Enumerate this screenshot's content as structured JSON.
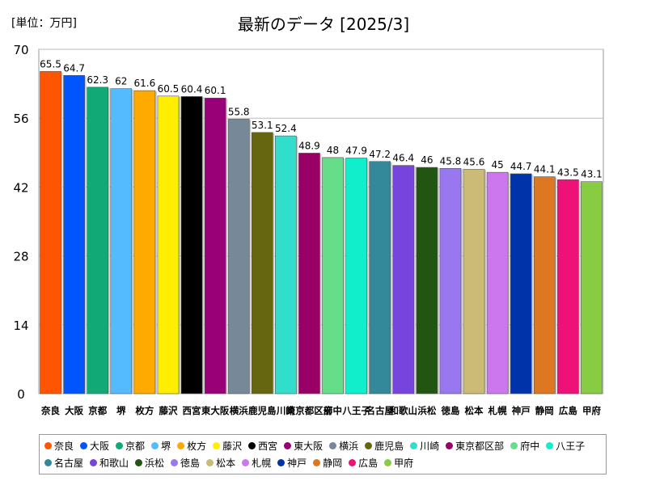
{
  "header": {
    "unit_label": "[単位：万円]",
    "title": "最新のデータ [2025/3]"
  },
  "chart_data": {
    "type": "bar",
    "title": "最新のデータ [2025/3]",
    "unit": "[単位：万円]",
    "xlabel": "",
    "ylabel": "",
    "ylim": [
      0,
      70
    ],
    "yticks": [
      0,
      14,
      28,
      42,
      56,
      70
    ],
    "grid": true,
    "legend_position": "bottom",
    "categories": [
      "奈良",
      "大阪",
      "京都",
      "堺",
      "枚方",
      "藤沢",
      "西宮",
      "東大阪",
      "横浜",
      "鹿児島",
      "川崎",
      "東京都区部",
      "府中",
      "八王子",
      "名古屋",
      "和歌山",
      "浜松",
      "徳島",
      "松本",
      "札幌",
      "神戸",
      "静岡",
      "広島",
      "甲府"
    ],
    "axis_labels": [
      "奈良",
      "大阪",
      "京都",
      "堺",
      "枚方",
      "藤沢",
      "西宮",
      "東大阪",
      "横浜",
      "鹿児島",
      "川崎",
      "東京都区部",
      "府中",
      "八王子",
      "名古屋",
      "和歌山",
      "浜松",
      "徳島",
      "松本",
      "札幌",
      "神戸",
      "静岡",
      "広島",
      "甲府"
    ],
    "values": [
      65.5,
      64.7,
      62.3,
      62,
      61.6,
      60.5,
      60.4,
      60.1,
      55.8,
      53.1,
      52.4,
      48.9,
      48,
      47.9,
      47.2,
      46.4,
      46,
      45.8,
      45.6,
      45,
      44.7,
      44.1,
      43.5,
      43.1
    ],
    "value_labels": [
      "65.5",
      "64.7",
      "62.3",
      "62",
      "61.6",
      "60.5",
      "60.4",
      "60.1",
      "55.8",
      "53.1",
      "52.4",
      "48.9",
      "48",
      "47.9",
      "47.2",
      "46.4",
      "46",
      "45.8",
      "45.6",
      "45",
      "44.7",
      "44.1",
      "43.5",
      "43.1"
    ],
    "colors": [
      "#ff5500",
      "#0055ff",
      "#11aa77",
      "#55bbff",
      "#ffaa00",
      "#ffee00",
      "#000000",
      "#990077",
      "#778899",
      "#666611",
      "#33ddcc",
      "#990066",
      "#66dd88",
      "#11eecc",
      "#338899",
      "#7744dd",
      "#225511",
      "#9977ee",
      "#ccbb77",
      "#cc77ee",
      "#0033aa",
      "#dd7722",
      "#ee1177",
      "#88cc44"
    ]
  }
}
